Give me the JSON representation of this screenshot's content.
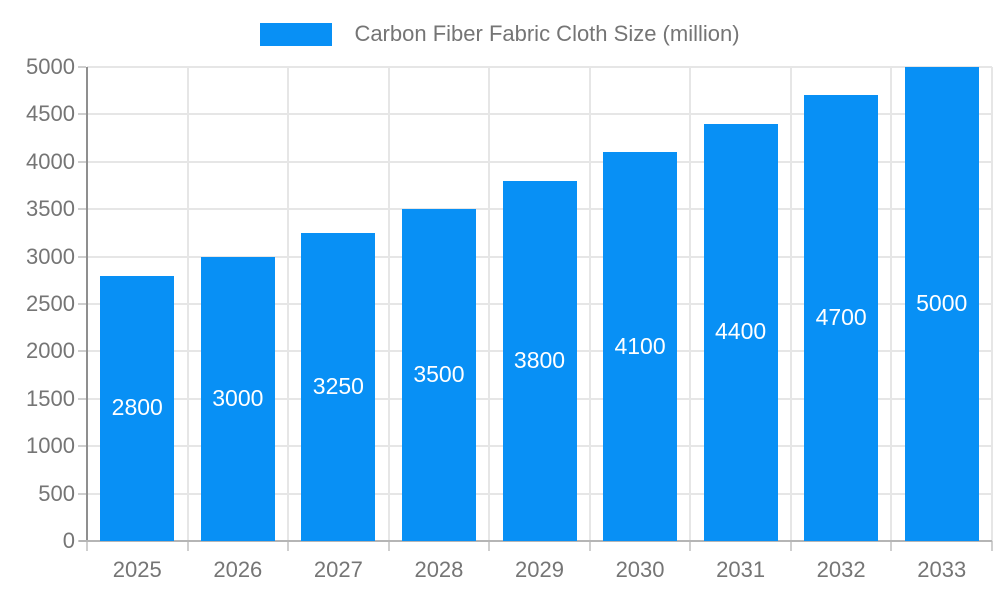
{
  "legend": {
    "label": "Carbon Fiber Fabric Cloth Size (million)",
    "swatch_color": "#0890f5"
  },
  "chart_data": {
    "type": "bar",
    "title": "Carbon Fiber Fabric Cloth Size (million)",
    "categories": [
      "2025",
      "2026",
      "2027",
      "2028",
      "2029",
      "2030",
      "2031",
      "2032",
      "2033"
    ],
    "values": [
      2800,
      3000,
      3250,
      3500,
      3800,
      4100,
      4400,
      4700,
      5000
    ],
    "bar_labels": [
      "2800",
      "3000",
      "3250",
      "3500",
      "3800",
      "4100",
      "4400",
      "4700",
      "5000"
    ],
    "xlabel": "",
    "ylabel": "",
    "ylim": [
      0,
      5000
    ],
    "ytick_step": 500,
    "ytick_labels": [
      "0",
      "500",
      "1000",
      "1500",
      "2000",
      "2500",
      "3000",
      "3500",
      "4000",
      "4500",
      "5000"
    ],
    "grid": "on",
    "legend_position": "top",
    "bar_color": "#0890f5",
    "bar_label_color": "#ffffff",
    "axis_text_color": "#757575",
    "gridline_color": "#e6e6e6"
  }
}
